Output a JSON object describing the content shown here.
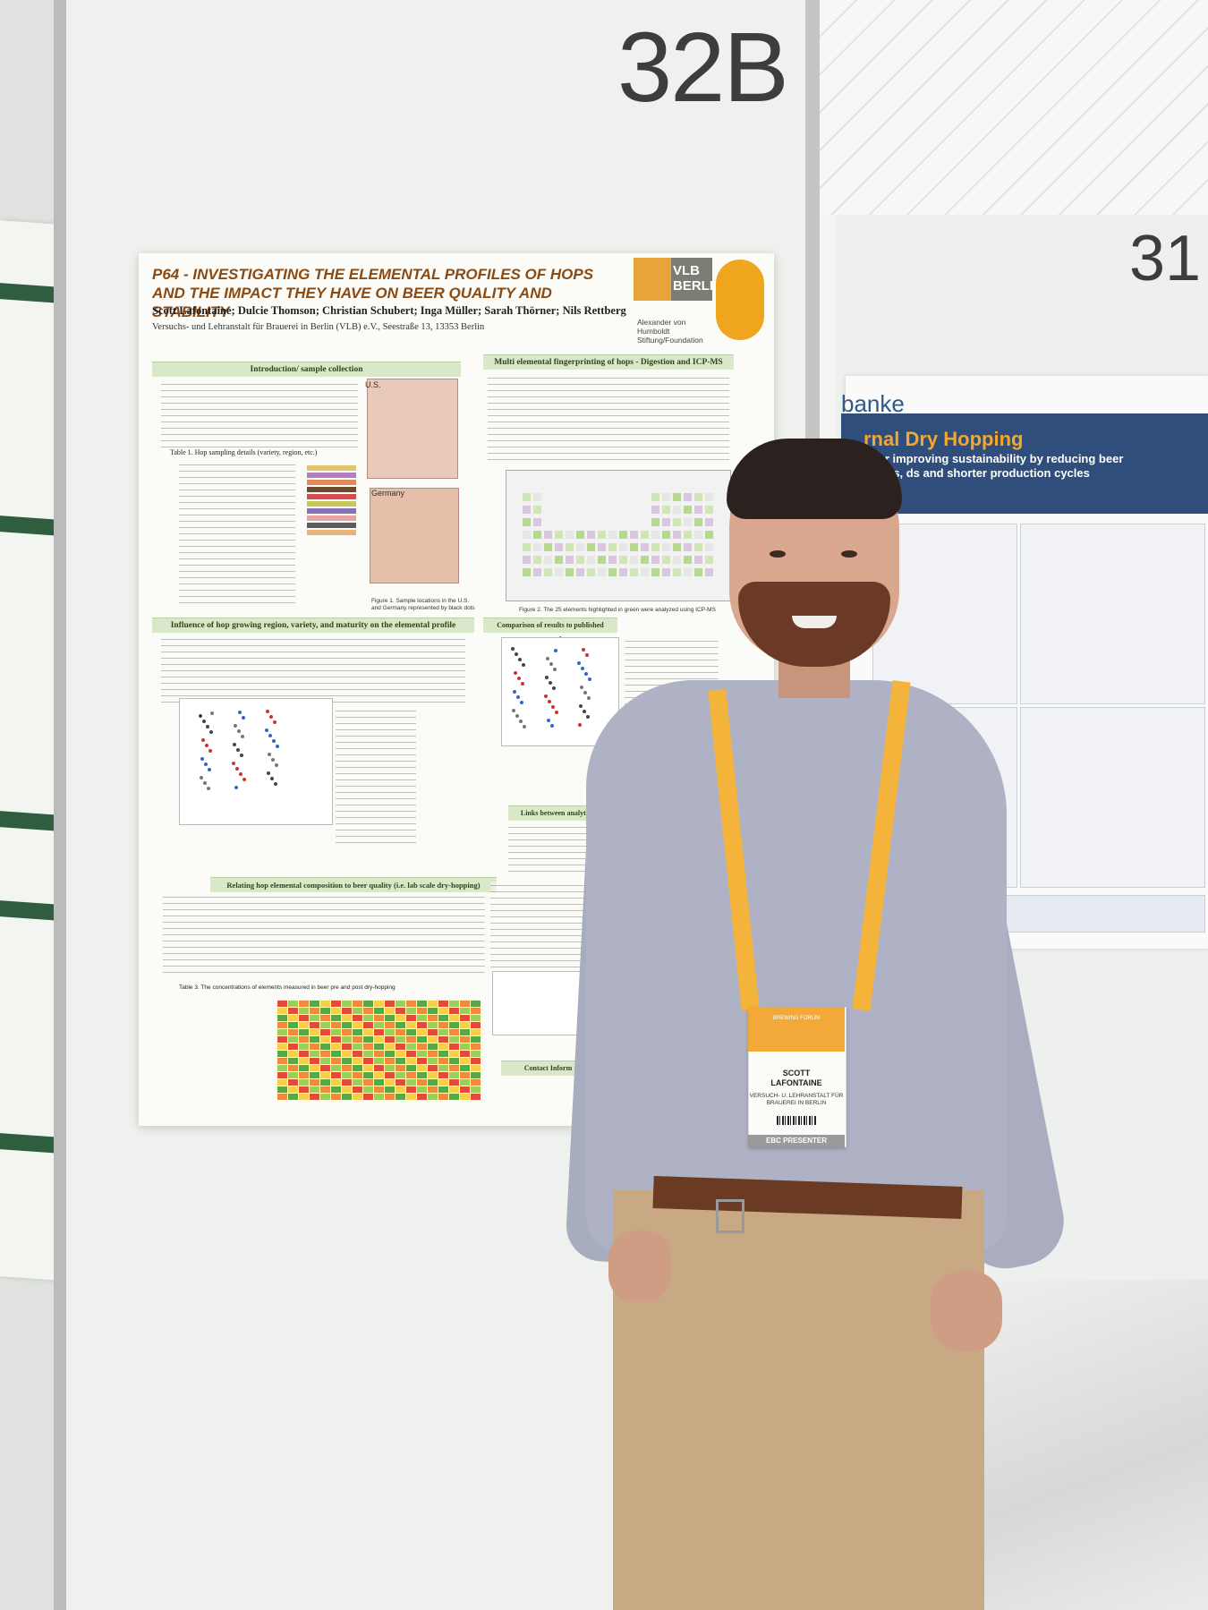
{
  "booth": {
    "main_number": "32B",
    "neighbor_number": "31"
  },
  "poster": {
    "title": "P64 - INVESTIGATING THE ELEMENTAL PROFILES OF HOPS AND THE IMPACT THEY HAVE ON BEER QUALITY AND STABILITY",
    "authors": "Scott Lafontaine; Dulcie Thomson; Christian Schubert; Inga Müller; Sarah Thörner; Nils Rettberg",
    "affiliation": "Versuchs- und Lehranstalt für Brauerei in Berlin (VLB) e.V., Seestraße 13, 13353 Berlin",
    "logo": "VLB BERLIN",
    "sponsor": "Alexander von Humboldt Stiftung/Foundation",
    "sections": [
      "Introduction/ sample collection",
      "Multi elemental fingerprinting of hops - Digestion and ICP-MS",
      "Influence of hop growing region, variety, and maturity on the elemental profile",
      "Comparison of results to published research",
      "Links between analytical determinants",
      "Relating hop elemental composition to beer quality (i.e. lab scale dry-hopping)",
      "Contact Inform"
    ],
    "map_labels": [
      "U.S.",
      "Germany"
    ],
    "table_caption": "Table 1. Hop sampling details (variety, region, etc.)",
    "figure1_caption": "Figure 1. Sample locations in the U.S. and Germany represented by black dots",
    "figure2_caption": "Figure 2. The 25 elements highlighted in green were analyzed using ICP-MS",
    "table3_caption": "Table 3. The concentrations of elements measured in beer pre and post dry-hopping"
  },
  "neighbor_poster": {
    "org": "banke",
    "title": "rnal Dry Hopping",
    "subtitle": "h for improving sustainability by reducing beer losses, ds and shorter production cycles"
  },
  "badge": {
    "event": "BREWING FORUM",
    "name_first": "SCOTT",
    "name_last": "LAFONTAINE",
    "organization": "VERSUCH- U. LEHRANSTALT FÜR BRAUEREI IN BERLIN",
    "role": "EBC PRESENTER"
  },
  "colors": {
    "poster_title": "#8a4a12",
    "section_header": "#d8e8c8",
    "lanyard": "#f4b43c",
    "neighbor_banner": "#2f4e7c"
  }
}
